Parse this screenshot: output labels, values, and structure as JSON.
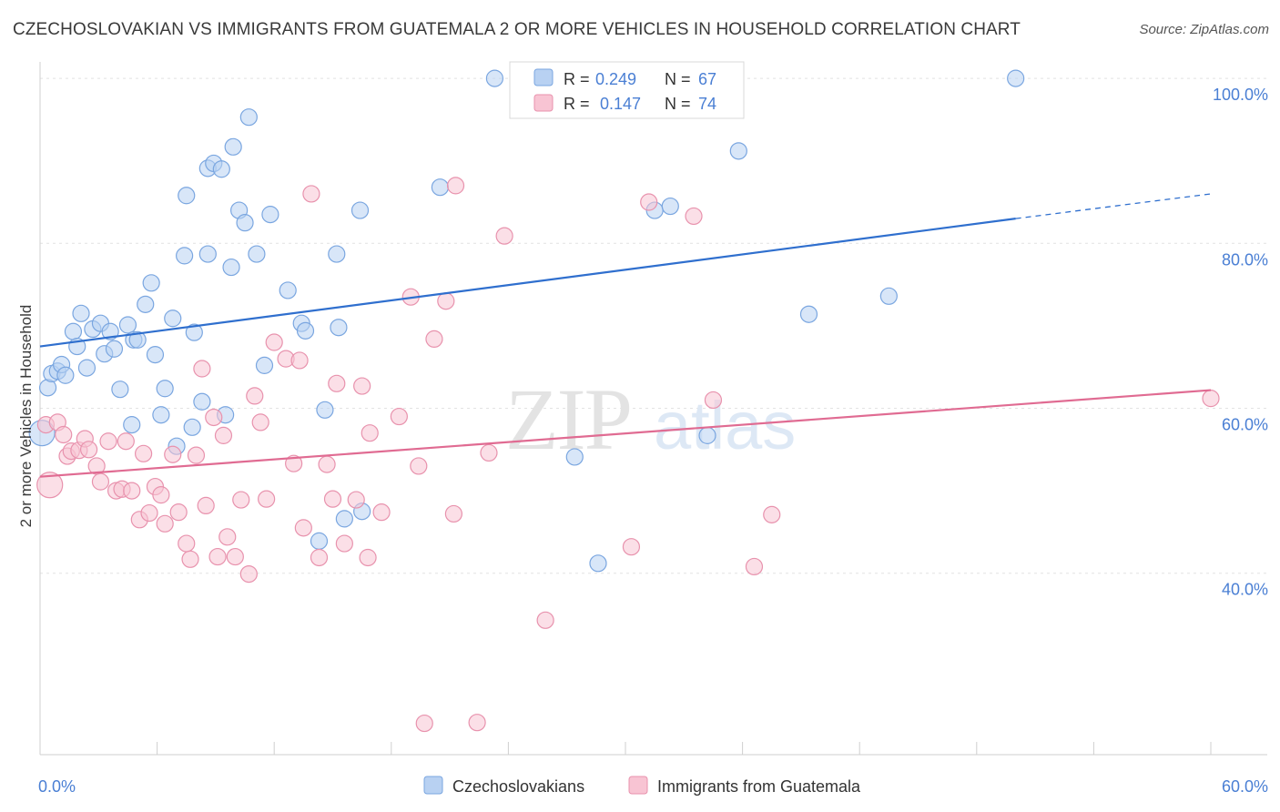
{
  "header": {
    "title": "CZECHOSLOVAKIAN VS IMMIGRANTS FROM GUATEMALA 2 OR MORE VEHICLES IN HOUSEHOLD CORRELATION CHART",
    "source": "Source: ZipAtlas.com"
  },
  "watermark": {
    "zip": "ZIP",
    "atlas": "atlas"
  },
  "chart_data": {
    "type": "scatter",
    "xlabel": "",
    "ylabel": "2 or more Vehicles in Household",
    "xlim": [
      0,
      60
    ],
    "ylim": [
      18,
      102
    ],
    "x_tick_labels": [
      {
        "value": 0,
        "label": "0.0%"
      },
      {
        "value": 60,
        "label": "60.0%"
      }
    ],
    "y_tick_labels": [
      {
        "value": 40,
        "label": "40.0%"
      },
      {
        "value": 60,
        "label": "60.0%"
      },
      {
        "value": 80,
        "label": "80.0%"
      },
      {
        "value": 100,
        "label": "100.0%"
      }
    ],
    "grid": "horizontal dashed",
    "legend_position": "top-center",
    "legend_stats": [
      {
        "r_label": "R =",
        "r_value": "0.249",
        "n_label": "N =",
        "n_value": "67",
        "color": "#4a7fd4"
      },
      {
        "r_label": "R =",
        "r_value": "0.147",
        "n_label": "N =",
        "n_value": "74",
        "color": "#4a7fd4"
      }
    ],
    "series": [
      {
        "name": "Czechoslovakians",
        "fill": "#b8d1f2",
        "stroke": "#7aa6e0",
        "line_color": "#2f6fce",
        "trend": {
          "x0": 0,
          "y0": 67.5,
          "x1": 50,
          "y1": 83.0,
          "dash_to_x": 60,
          "dash_to_y": 86.0
        },
        "points": [
          [
            0.1,
            57.0
          ],
          [
            0.4,
            62.5
          ],
          [
            0.6,
            64.2
          ],
          [
            0.9,
            64.5
          ],
          [
            1.1,
            65.3
          ],
          [
            1.3,
            64.0
          ],
          [
            1.7,
            69.3
          ],
          [
            1.9,
            67.5
          ],
          [
            2.1,
            71.5
          ],
          [
            2.4,
            64.9
          ],
          [
            2.7,
            69.6
          ],
          [
            3.1,
            70.3
          ],
          [
            3.3,
            66.6
          ],
          [
            3.6,
            69.3
          ],
          [
            3.8,
            67.2
          ],
          [
            4.1,
            62.3
          ],
          [
            4.5,
            70.1
          ],
          [
            4.7,
            58.0
          ],
          [
            4.8,
            68.3
          ],
          [
            5.0,
            68.3
          ],
          [
            5.4,
            72.6
          ],
          [
            5.7,
            75.2
          ],
          [
            5.9,
            66.5
          ],
          [
            6.2,
            59.2
          ],
          [
            6.4,
            62.4
          ],
          [
            6.8,
            70.9
          ],
          [
            7.0,
            55.4
          ],
          [
            7.4,
            78.5
          ],
          [
            7.5,
            85.8
          ],
          [
            7.8,
            57.7
          ],
          [
            7.9,
            69.2
          ],
          [
            8.3,
            60.8
          ],
          [
            8.6,
            78.7
          ],
          [
            8.6,
            89.1
          ],
          [
            8.9,
            89.7
          ],
          [
            9.3,
            89.0
          ],
          [
            9.5,
            59.2
          ],
          [
            9.8,
            77.1
          ],
          [
            9.9,
            91.7
          ],
          [
            10.2,
            84.0
          ],
          [
            10.5,
            82.5
          ],
          [
            10.7,
            95.3
          ],
          [
            11.1,
            78.7
          ],
          [
            11.5,
            65.2
          ],
          [
            11.8,
            83.5
          ],
          [
            12.7,
            74.3
          ],
          [
            13.4,
            70.3
          ],
          [
            13.6,
            69.4
          ],
          [
            14.3,
            43.9
          ],
          [
            14.6,
            59.8
          ],
          [
            15.2,
            78.7
          ],
          [
            15.3,
            69.8
          ],
          [
            15.6,
            46.6
          ],
          [
            16.4,
            84.0
          ],
          [
            16.5,
            47.5
          ],
          [
            20.5,
            86.8
          ],
          [
            23.3,
            100.0
          ],
          [
            24.5,
            100.0
          ],
          [
            27.4,
            54.1
          ],
          [
            28.6,
            41.2
          ],
          [
            31.5,
            84.0
          ],
          [
            32.3,
            84.5
          ],
          [
            34.2,
            56.7
          ],
          [
            35.8,
            91.2
          ],
          [
            39.4,
            71.4
          ],
          [
            43.5,
            73.6
          ],
          [
            50.0,
            100.0
          ]
        ]
      },
      {
        "name": "Immigrants from Guatemala",
        "fill": "#f8c4d3",
        "stroke": "#e892ad",
        "line_color": "#e06b92",
        "trend": {
          "x0": 0,
          "y0": 51.7,
          "x1": 60,
          "y1": 62.2
        },
        "points": [
          [
            0.3,
            58.0
          ],
          [
            0.5,
            50.7
          ],
          [
            0.9,
            58.3
          ],
          [
            1.2,
            56.8
          ],
          [
            1.4,
            54.2
          ],
          [
            1.6,
            54.8
          ],
          [
            2.0,
            54.9
          ],
          [
            2.3,
            56.3
          ],
          [
            2.5,
            55.0
          ],
          [
            2.9,
            53.0
          ],
          [
            3.1,
            51.1
          ],
          [
            3.5,
            56.0
          ],
          [
            3.9,
            50.0
          ],
          [
            4.2,
            50.2
          ],
          [
            4.4,
            56.0
          ],
          [
            4.7,
            50.0
          ],
          [
            5.1,
            46.5
          ],
          [
            5.3,
            54.5
          ],
          [
            5.6,
            47.3
          ],
          [
            5.9,
            50.5
          ],
          [
            6.2,
            49.5
          ],
          [
            6.4,
            46.0
          ],
          [
            6.8,
            54.4
          ],
          [
            7.1,
            47.4
          ],
          [
            7.5,
            43.6
          ],
          [
            7.7,
            41.7
          ],
          [
            8.0,
            54.3
          ],
          [
            8.3,
            64.8
          ],
          [
            8.5,
            48.2
          ],
          [
            8.9,
            58.9
          ],
          [
            9.1,
            42.0
          ],
          [
            9.4,
            56.7
          ],
          [
            9.6,
            44.4
          ],
          [
            10.0,
            42.0
          ],
          [
            10.3,
            48.9
          ],
          [
            10.7,
            39.9
          ],
          [
            11.0,
            61.5
          ],
          [
            11.3,
            58.3
          ],
          [
            11.6,
            49.0
          ],
          [
            12.0,
            68.0
          ],
          [
            12.6,
            66.0
          ],
          [
            13.0,
            53.3
          ],
          [
            13.3,
            65.8
          ],
          [
            13.5,
            45.5
          ],
          [
            13.9,
            86.0
          ],
          [
            14.3,
            41.9
          ],
          [
            14.7,
            53.2
          ],
          [
            15.0,
            49.0
          ],
          [
            15.2,
            63.0
          ],
          [
            15.6,
            43.6
          ],
          [
            16.2,
            48.9
          ],
          [
            16.5,
            62.7
          ],
          [
            16.8,
            41.9
          ],
          [
            16.9,
            57.0
          ],
          [
            17.5,
            47.4
          ],
          [
            18.4,
            59.0
          ],
          [
            19.0,
            73.5
          ],
          [
            19.4,
            53.0
          ],
          [
            19.7,
            21.8
          ],
          [
            20.2,
            68.4
          ],
          [
            20.8,
            73.0
          ],
          [
            21.2,
            47.2
          ],
          [
            21.3,
            87.0
          ],
          [
            22.4,
            21.9
          ],
          [
            23.0,
            54.6
          ],
          [
            23.8,
            80.9
          ],
          [
            25.9,
            34.3
          ],
          [
            30.3,
            43.2
          ],
          [
            31.2,
            85.0
          ],
          [
            33.5,
            83.3
          ],
          [
            34.5,
            61.0
          ],
          [
            36.6,
            40.8
          ],
          [
            37.5,
            47.1
          ],
          [
            60.0,
            61.2
          ]
        ]
      }
    ]
  },
  "legend_bottom": [
    "Czechoslovakians",
    "Immigrants from Guatemala"
  ]
}
